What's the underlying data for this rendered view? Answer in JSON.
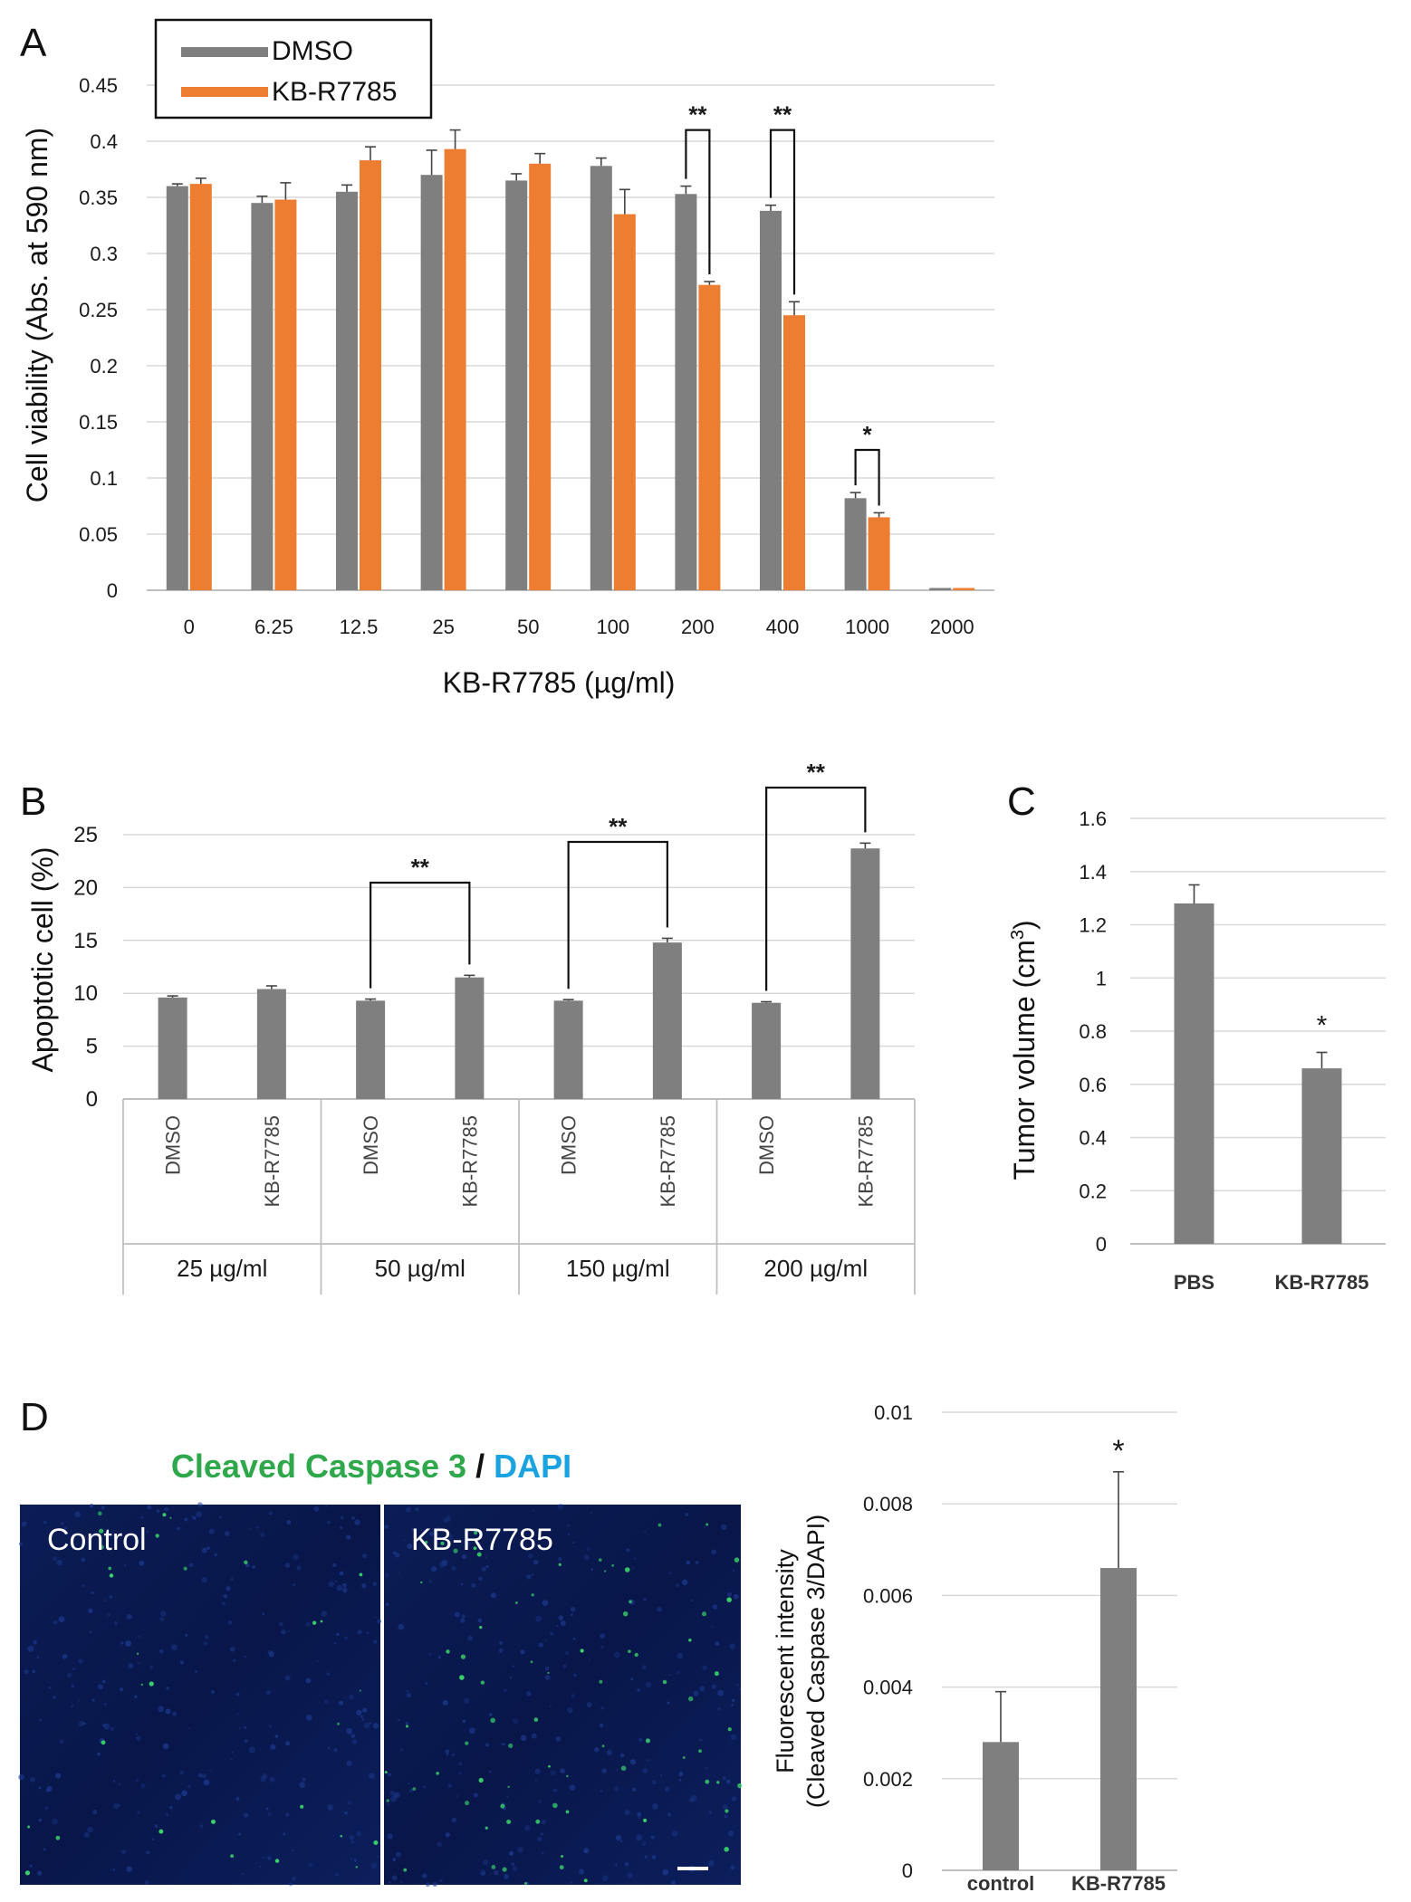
{
  "colors": {
    "dmso": "#7f7f7f",
    "kb": "#ed7d31",
    "grid": "#d9d9d9",
    "axis": "#bfbfbf",
    "text": "#1a1a1a",
    "green": "#2ea84a",
    "blue": "#1aa3e0",
    "micro_bg": "#0a1a4a"
  },
  "chart_data": [
    {
      "id": "A",
      "panel_label": "A",
      "type": "bar",
      "ylabel": "Cell viability (Abs. at 590 nm)",
      "xlabel": "KB-R7785 (µg/ml)",
      "ylim": [
        0,
        0.45
      ],
      "yticks": [
        "0",
        "0.05",
        "0.1",
        "0.15",
        "0.2",
        "0.25",
        "0.3",
        "0.35",
        "0.4",
        "0.45"
      ],
      "ytick_values": [
        0,
        0.05,
        0.1,
        0.15,
        0.2,
        0.25,
        0.3,
        0.35,
        0.4,
        0.45
      ],
      "categories": [
        "0",
        "6.25",
        "12.5",
        "25",
        "50",
        "100",
        "200",
        "400",
        "1000",
        "2000"
      ],
      "series": [
        {
          "name": "DMSO",
          "values": [
            0.36,
            0.345,
            0.355,
            0.37,
            0.365,
            0.378,
            0.353,
            0.338,
            0.082,
            0.002
          ],
          "errors": [
            0.002,
            0.006,
            0.006,
            0.022,
            0.006,
            0.007,
            0.007,
            0.005,
            0.005,
            0.0
          ]
        },
        {
          "name": "KB-R7785",
          "values": [
            0.362,
            0.348,
            0.383,
            0.393,
            0.38,
            0.335,
            0.272,
            0.245,
            0.065,
            0.002
          ],
          "errors": [
            0.005,
            0.015,
            0.012,
            0.017,
            0.009,
            0.022,
            0.003,
            0.012,
            0.004,
            0.0
          ]
        }
      ],
      "legend": [
        "DMSO",
        "KB-R7785"
      ],
      "significance": [
        {
          "category": "200",
          "label": "**"
        },
        {
          "category": "400",
          "label": "**"
        },
        {
          "category": "1000",
          "label": "*"
        }
      ]
    },
    {
      "id": "B",
      "panel_label": "B",
      "type": "bar",
      "ylabel": "Apoptotic cell (%)",
      "ylim": [
        0,
        25
      ],
      "yticks": [
        "0",
        "5",
        "10",
        "15",
        "20",
        "25"
      ],
      "ytick_values": [
        0,
        5,
        10,
        15,
        20,
        25
      ],
      "categories": [
        "DMSO",
        "KB-R7785",
        "DMSO",
        "KB-R7785",
        "DMSO",
        "KB-R7785",
        "DMSO",
        "KB-R7785"
      ],
      "groups": [
        "25 µg/ml",
        "50 µg/ml",
        "150 µg/ml",
        "200 µg/ml"
      ],
      "values": [
        9.6,
        10.4,
        9.3,
        11.5,
        9.3,
        14.8,
        9.1,
        23.7
      ],
      "errors": [
        0.15,
        0.3,
        0.15,
        0.2,
        0.1,
        0.4,
        0.1,
        0.5
      ],
      "significance": [
        {
          "group": "50 µg/ml",
          "label": "**"
        },
        {
          "group": "150 µg/ml",
          "label": "**"
        },
        {
          "group": "200 µg/ml",
          "label": "**"
        }
      ]
    },
    {
      "id": "C",
      "panel_label": "C",
      "type": "bar",
      "ylabel": "Tumor volume (cm",
      "ylabel_sup": "3",
      "ylabel_end": ")",
      "ylim": [
        0,
        1.6
      ],
      "yticks": [
        "0",
        "0.2",
        "0.4",
        "0.6",
        "0.8",
        "1",
        "1.2",
        "1.4",
        "1.6"
      ],
      "ytick_values": [
        0,
        0.2,
        0.4,
        0.6,
        0.8,
        1,
        1.2,
        1.4,
        1.6
      ],
      "categories": [
        "PBS",
        "KB-R7785"
      ],
      "values": [
        1.28,
        0.66
      ],
      "errors": [
        0.07,
        0.06
      ],
      "significance": [
        {
          "category": "KB-R7785",
          "label": "*"
        }
      ]
    },
    {
      "id": "D",
      "panel_label": "D",
      "type": "bar",
      "ylabel_line1": "Fluorescent intensity",
      "ylabel_line2": "(Cleaved Caspase 3/DAPI)",
      "ylim": [
        0,
        0.01
      ],
      "yticks": [
        "0",
        "0.002",
        "0.004",
        "0.006",
        "0.008",
        "0.01"
      ],
      "ytick_values": [
        0,
        0.002,
        0.004,
        0.006,
        0.008,
        0.01
      ],
      "categories": [
        "control",
        "KB-R7785"
      ],
      "values": [
        0.0028,
        0.0066
      ],
      "errors": [
        0.0011,
        0.0021
      ],
      "significance": [
        {
          "category": "KB-R7785",
          "label": "*"
        }
      ]
    }
  ],
  "panel_d_images": {
    "stain_green": "Cleaved Caspase 3",
    "stain_sep": " / ",
    "stain_blue": "DAPI",
    "left_label": "Control",
    "right_label": "KB-R7785"
  }
}
